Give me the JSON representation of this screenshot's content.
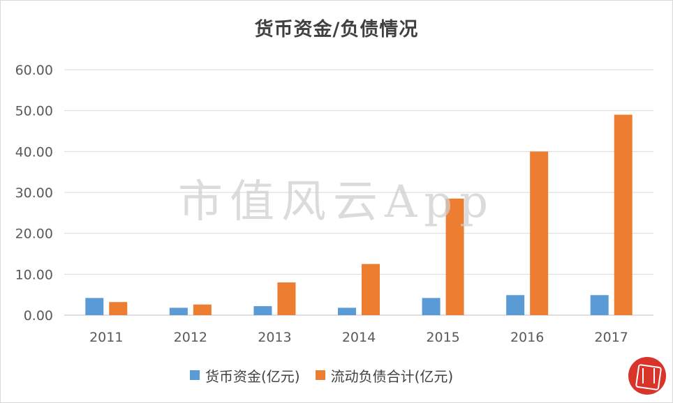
{
  "chart_data": {
    "type": "bar",
    "title": "货币资金/负债情况",
    "categories": [
      "2011",
      "2012",
      "2013",
      "2014",
      "2015",
      "2016",
      "2017"
    ],
    "series": [
      {
        "name": "货币资金(亿元)",
        "color": "#5b9bd5",
        "values": [
          4.2,
          1.8,
          2.2,
          1.8,
          4.2,
          4.9,
          4.9
        ]
      },
      {
        "name": "流动负债合计(亿元)",
        "color": "#ed7d31",
        "values": [
          3.2,
          2.6,
          8.0,
          12.5,
          28.5,
          40.0,
          49.0
        ]
      }
    ],
    "y_ticks": [
      "0.00",
      "10.00",
      "20.00",
      "30.00",
      "40.00",
      "50.00",
      "60.00"
    ],
    "ylim": [
      0,
      60
    ],
    "grid": true,
    "legend_position": "bottom"
  },
  "watermark": {
    "text": "市值风云App"
  },
  "seal": {
    "description": "red round seal logo"
  }
}
